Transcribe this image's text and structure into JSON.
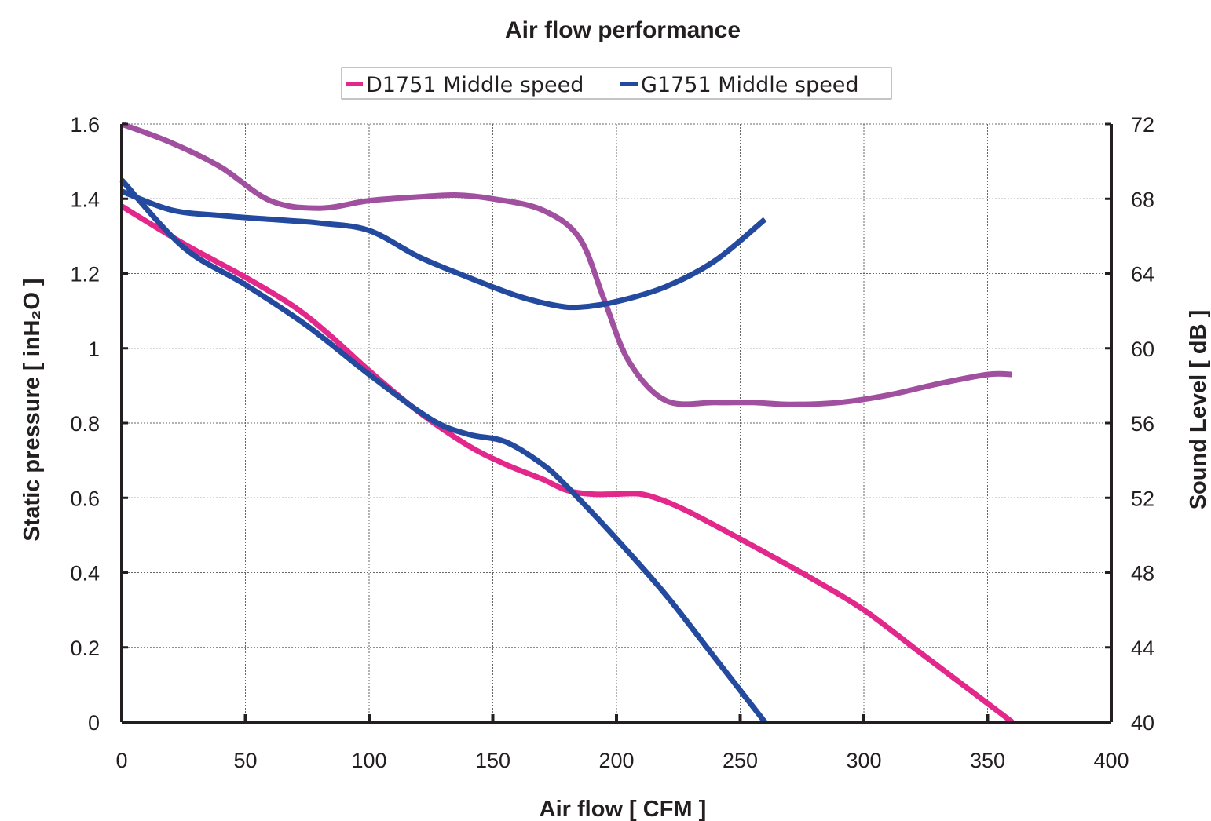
{
  "chart_data": {
    "type": "line",
    "title": "Air flow performance",
    "xlabel": "Air flow [ CFM ]",
    "ylabel": "Static pressure [ inH₂O ]",
    "y2label": "Sound Level [ dB ]",
    "xlim": [
      0,
      400
    ],
    "ylim": [
      0,
      1.6
    ],
    "y2lim": [
      40,
      72
    ],
    "x_ticks": [
      "0",
      "50",
      "100",
      "150",
      "200",
      "250",
      "300",
      "350",
      "400"
    ],
    "y_ticks": [
      "0",
      "0.2",
      "0.4",
      "0.6",
      "0.8",
      "1",
      "1.2",
      "1.4",
      "1.6"
    ],
    "y2_ticks": [
      "40",
      "44",
      "48",
      "52",
      "56",
      "60",
      "64",
      "68",
      "72"
    ],
    "grid": true,
    "legend_position": "top-center",
    "legend": [
      {
        "label": "D1751 Middle speed",
        "color": "#e2288a"
      },
      {
        "label": "G1751 Middle speed",
        "color": "#234a9e"
      }
    ],
    "series": [
      {
        "name": "D1751 Middle speed",
        "axis": "left",
        "color": "#e2288a",
        "x": [
          0,
          25,
          50,
          70,
          85,
          100,
          120,
          140,
          155,
          170,
          180,
          190,
          200,
          210,
          220,
          230,
          250,
          280,
          300,
          320,
          340,
          360
        ],
        "y": [
          1.38,
          1.28,
          1.19,
          1.11,
          1.03,
          0.94,
          0.83,
          0.74,
          0.69,
          0.65,
          0.62,
          0.61,
          0.61,
          0.61,
          0.59,
          0.56,
          0.49,
          0.38,
          0.3,
          0.2,
          0.1,
          0.0
        ]
      },
      {
        "name": "G1751 Middle speed",
        "axis": "left",
        "color": "#234a9e",
        "x": [
          0,
          25,
          50,
          75,
          100,
          125,
          140,
          155,
          170,
          180,
          200,
          220,
          240,
          260
        ],
        "y": [
          1.45,
          1.27,
          1.17,
          1.06,
          0.93,
          0.81,
          0.77,
          0.75,
          0.69,
          0.63,
          0.49,
          0.34,
          0.17,
          0.0
        ]
      },
      {
        "axis": "right",
        "color": "#a0509e",
        "x": [
          0,
          20,
          40,
          60,
          80,
          100,
          120,
          135,
          150,
          170,
          185,
          195,
          205,
          220,
          240,
          255,
          270,
          290,
          310,
          330,
          350,
          360
        ],
        "y": [
          72.0,
          71.0,
          69.7,
          67.9,
          67.5,
          67.9,
          68.1,
          68.2,
          68.0,
          67.4,
          65.9,
          62.6,
          59.3,
          57.2,
          57.1,
          57.1,
          57.0,
          57.1,
          57.5,
          58.1,
          58.6,
          58.6
        ]
      },
      {
        "axis": "right",
        "color": "#234a9e",
        "x": [
          0,
          20,
          40,
          60,
          80,
          100,
          120,
          140,
          160,
          175,
          185,
          200,
          220,
          240,
          260
        ],
        "y": [
          68.4,
          67.4,
          67.1,
          66.9,
          66.7,
          66.3,
          64.9,
          63.8,
          62.8,
          62.3,
          62.2,
          62.5,
          63.3,
          64.7,
          66.9
        ]
      }
    ]
  }
}
